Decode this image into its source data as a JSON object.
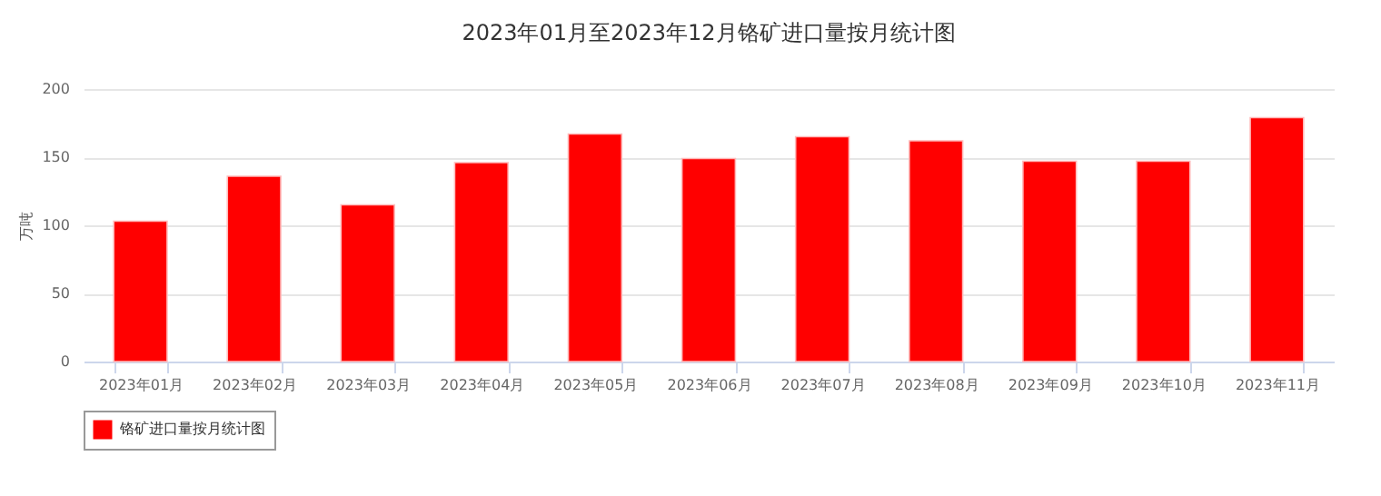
{
  "chart_data": {
    "type": "bar",
    "title": "2023年01月至2023年12月铬矿进口量按月统计图",
    "ylabel": "万吨",
    "categories": [
      "2023年01月",
      "2023年02月",
      "2023年03月",
      "2023年04月",
      "2023年05月",
      "2023年06月",
      "2023年07月",
      "2023年08月",
      "2023年09月",
      "2023年10月",
      "2023年11月"
    ],
    "series": [
      {
        "name": "铬矿进口量按月统计图",
        "color": "#ff0000",
        "values": [
          103,
          136,
          115,
          146,
          167,
          149,
          165,
          162,
          147,
          147,
          179
        ]
      }
    ],
    "ylim": [
      0,
      200
    ],
    "yticks": [
      0,
      50,
      100,
      150,
      200
    ],
    "grid": "y",
    "legend": "bottom"
  }
}
